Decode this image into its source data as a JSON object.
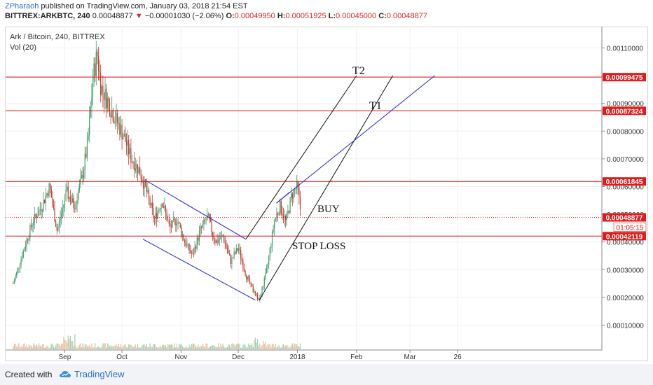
{
  "header": {
    "author": "ZPharaoh",
    "published_text": "published on TradingView.com, January 03, 2018 21:54 EST",
    "symbol": "BITTREX:ARKBTC, 240",
    "last_price": "0.00048877",
    "change_arrow": "▼",
    "change": "−0.00001030 (−2.06%)",
    "o_label": "O:",
    "o_value": "0.00049950",
    "h_label": "H:",
    "h_value": "0.00051925",
    "l_label": "L:",
    "l_value": "0.00045000",
    "c_label": "C:",
    "c_value": "0.00048877"
  },
  "legend": {
    "title": "Ark / Bitcoin, 240, BITTREX",
    "indicator": "Vol (20)"
  },
  "footer": {
    "created_with": "Created with",
    "brand": "TradingView"
  },
  "colors": {
    "up": "#3c9c6c",
    "down": "#c0392b",
    "level_line": "#d01010",
    "price_tag": "#e31a1a",
    "channel_black": "#111111",
    "channel_blue": "#2222cc"
  },
  "chart_data": {
    "type": "candlestick",
    "y_axis_ticks": [
      "0.00110000",
      "0.00100000",
      "0.00090000",
      "0.00080000",
      "0.00070000",
      "0.00060000",
      "0.00050000",
      "0.00040000",
      "0.00030000",
      "0.00020000",
      "0.00010000"
    ],
    "x_axis_ticks": [
      "Sep",
      "Oct",
      "Nov",
      "Dec",
      "2018",
      "Feb",
      "Mar",
      "26"
    ],
    "price_levels": [
      {
        "label": "0.00099475",
        "value": 0.00099475
      },
      {
        "label": "0.00087324",
        "value": 0.00087324
      },
      {
        "label": "0.00061845",
        "value": 0.00061845
      },
      {
        "label": "0.00042119",
        "value": 0.00042119
      }
    ],
    "last_price": {
      "label": "0.00048877",
      "value": 0.00048877
    },
    "countdown": "01:05:15",
    "annotations": [
      "T2",
      "T1",
      "BUY",
      "STOP LOSS"
    ],
    "price_path": [
      [
        "2017-08-05",
        0.00025
      ],
      [
        "2017-08-10",
        0.00036
      ],
      [
        "2017-08-15",
        0.00047
      ],
      [
        "2017-08-20",
        0.00053
      ],
      [
        "2017-08-24",
        0.0006
      ],
      [
        "2017-08-28",
        0.00044
      ],
      [
        "2017-09-02",
        0.00058
      ],
      [
        "2017-09-06",
        0.00053
      ],
      [
        "2017-09-10",
        0.00063
      ],
      [
        "2017-09-13",
        0.00075
      ],
      [
        "2017-09-16",
        0.001
      ],
      [
        "2017-09-18",
        0.00108
      ],
      [
        "2017-09-20",
        0.00096
      ],
      [
        "2017-09-24",
        0.0009
      ],
      [
        "2017-09-28",
        0.00084
      ],
      [
        "2017-10-02",
        0.00078
      ],
      [
        "2017-10-06",
        0.0007
      ],
      [
        "2017-10-10",
        0.00066
      ],
      [
        "2017-10-14",
        0.00058
      ],
      [
        "2017-10-18",
        0.00048
      ],
      [
        "2017-10-22",
        0.00055
      ],
      [
        "2017-10-26",
        0.00045
      ],
      [
        "2017-10-30",
        0.00048
      ],
      [
        "2017-11-03",
        0.0004
      ],
      [
        "2017-11-07",
        0.00035
      ],
      [
        "2017-11-11",
        0.00044
      ],
      [
        "2017-11-15",
        0.00049
      ],
      [
        "2017-11-19",
        0.0004
      ],
      [
        "2017-11-23",
        0.00042
      ],
      [
        "2017-11-27",
        0.00033
      ],
      [
        "2017-12-01",
        0.00038
      ],
      [
        "2017-12-05",
        0.00028
      ],
      [
        "2017-12-09",
        0.00022
      ],
      [
        "2017-12-12",
        0.00019
      ],
      [
        "2017-12-16",
        0.0003
      ],
      [
        "2017-12-20",
        0.00048
      ],
      [
        "2017-12-23",
        0.00053
      ],
      [
        "2017-12-26",
        0.00047
      ],
      [
        "2017-12-29",
        0.00057
      ],
      [
        "2018-01-01",
        0.0006
      ],
      [
        "2018-01-03",
        0.00049
      ]
    ],
    "annotation_lines": [
      {
        "name": "falling-channel-upper",
        "color": "blue",
        "points": [
          [
            "2017-10-14",
            0.00062
          ],
          [
            "2017-12-05",
            0.00041
          ]
        ]
      },
      {
        "name": "falling-channel-lower",
        "color": "blue",
        "points": [
          [
            "2017-10-12",
            0.00041
          ],
          [
            "2017-12-10",
            0.00019
          ]
        ]
      },
      {
        "name": "rising-channel-upper",
        "color": "black",
        "points": [
          [
            "2017-12-05",
            0.00041
          ],
          [
            "2018-02-01",
            0.001
          ]
        ]
      },
      {
        "name": "rising-channel-lower",
        "color": "black",
        "points": [
          [
            "2017-12-12",
            0.00019
          ],
          [
            "2018-02-20",
            0.001
          ]
        ]
      },
      {
        "name": "blue-trendline",
        "color": "blue",
        "points": [
          [
            "2017-12-21",
            0.00054
          ],
          [
            "2018-03-14",
            0.001
          ]
        ]
      },
      {
        "name": "blue-segment",
        "color": "blue",
        "points": [
          [
            "2017-12-21",
            0.00054
          ],
          [
            "2017-12-28",
            0.00058
          ]
        ]
      }
    ]
  }
}
